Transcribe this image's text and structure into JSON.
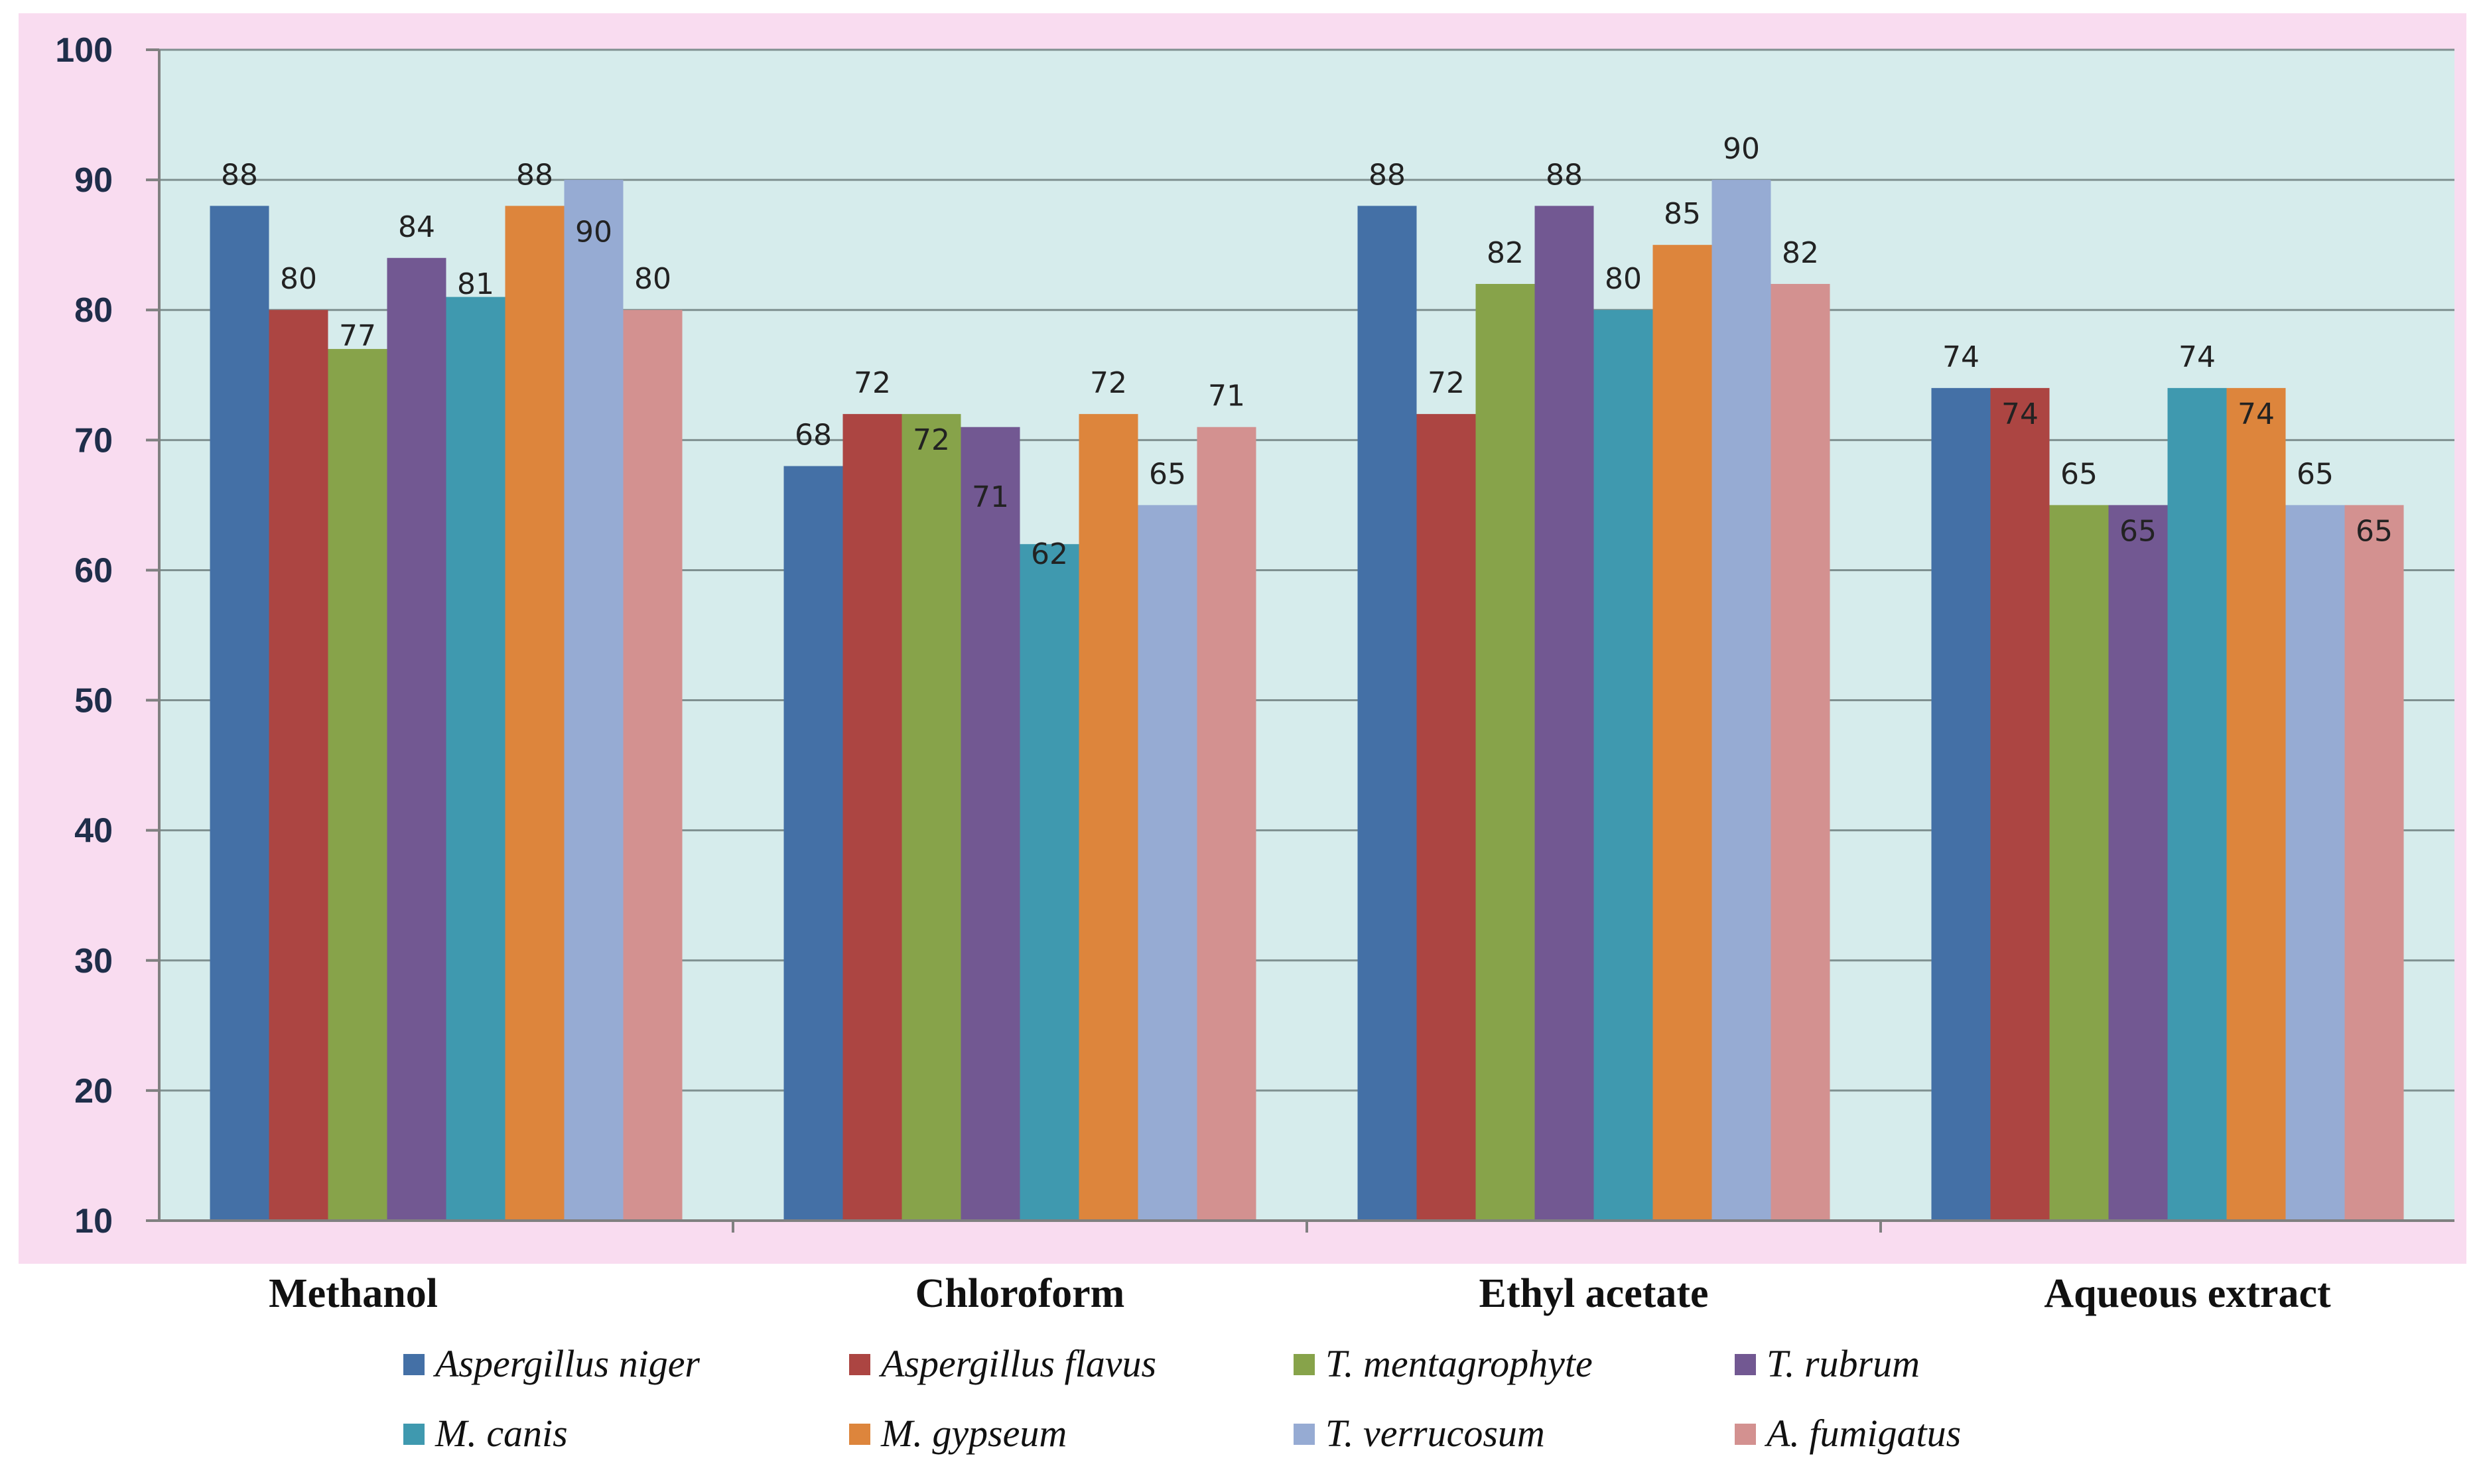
{
  "chart_data": {
    "type": "bar",
    "title": "",
    "xlabel": "",
    "ylabel": "",
    "ylim": [
      10,
      100
    ],
    "yticks": [
      "10",
      "20",
      "30",
      "40",
      "50",
      "60",
      "70",
      "80",
      "90",
      "100"
    ],
    "grid": true,
    "legend_position": "bottom",
    "categories": [
      "Methanol",
      "Chloroform",
      "Ethyl acetate",
      "Aqueous extract"
    ],
    "series": [
      {
        "name": "Aspergillus niger",
        "color": "#4470a6",
        "values": [
          88,
          68,
          88,
          74
        ]
      },
      {
        "name": "Aspergillus flavus",
        "color": "#ac4542",
        "values": [
          80,
          72,
          72,
          74
        ]
      },
      {
        "name": "T. mentagrophyte",
        "color": "#87a34a",
        "values": [
          77,
          72,
          82,
          65
        ]
      },
      {
        "name": "T. rubrum",
        "color": "#725892",
        "values": [
          84,
          71,
          88,
          65
        ]
      },
      {
        "name": "M. canis",
        "color": "#3f99af",
        "values": [
          81,
          62,
          80,
          74
        ]
      },
      {
        "name": "M. gypseum",
        "color": "#dd853c",
        "values": [
          88,
          72,
          85,
          74
        ]
      },
      {
        "name": "T. verrucosum",
        "color": "#96abd3",
        "values": [
          90,
          65,
          90,
          65
        ]
      },
      {
        "name": "A. fumigatus",
        "color": "#d39190",
        "values": [
          80,
          71,
          82,
          65
        ]
      }
    ],
    "colors": {
      "outer_background": "#f9dcf0",
      "plot_background": "#d6ecec",
      "gridline": "#7f9090",
      "axis": "#808080"
    }
  }
}
